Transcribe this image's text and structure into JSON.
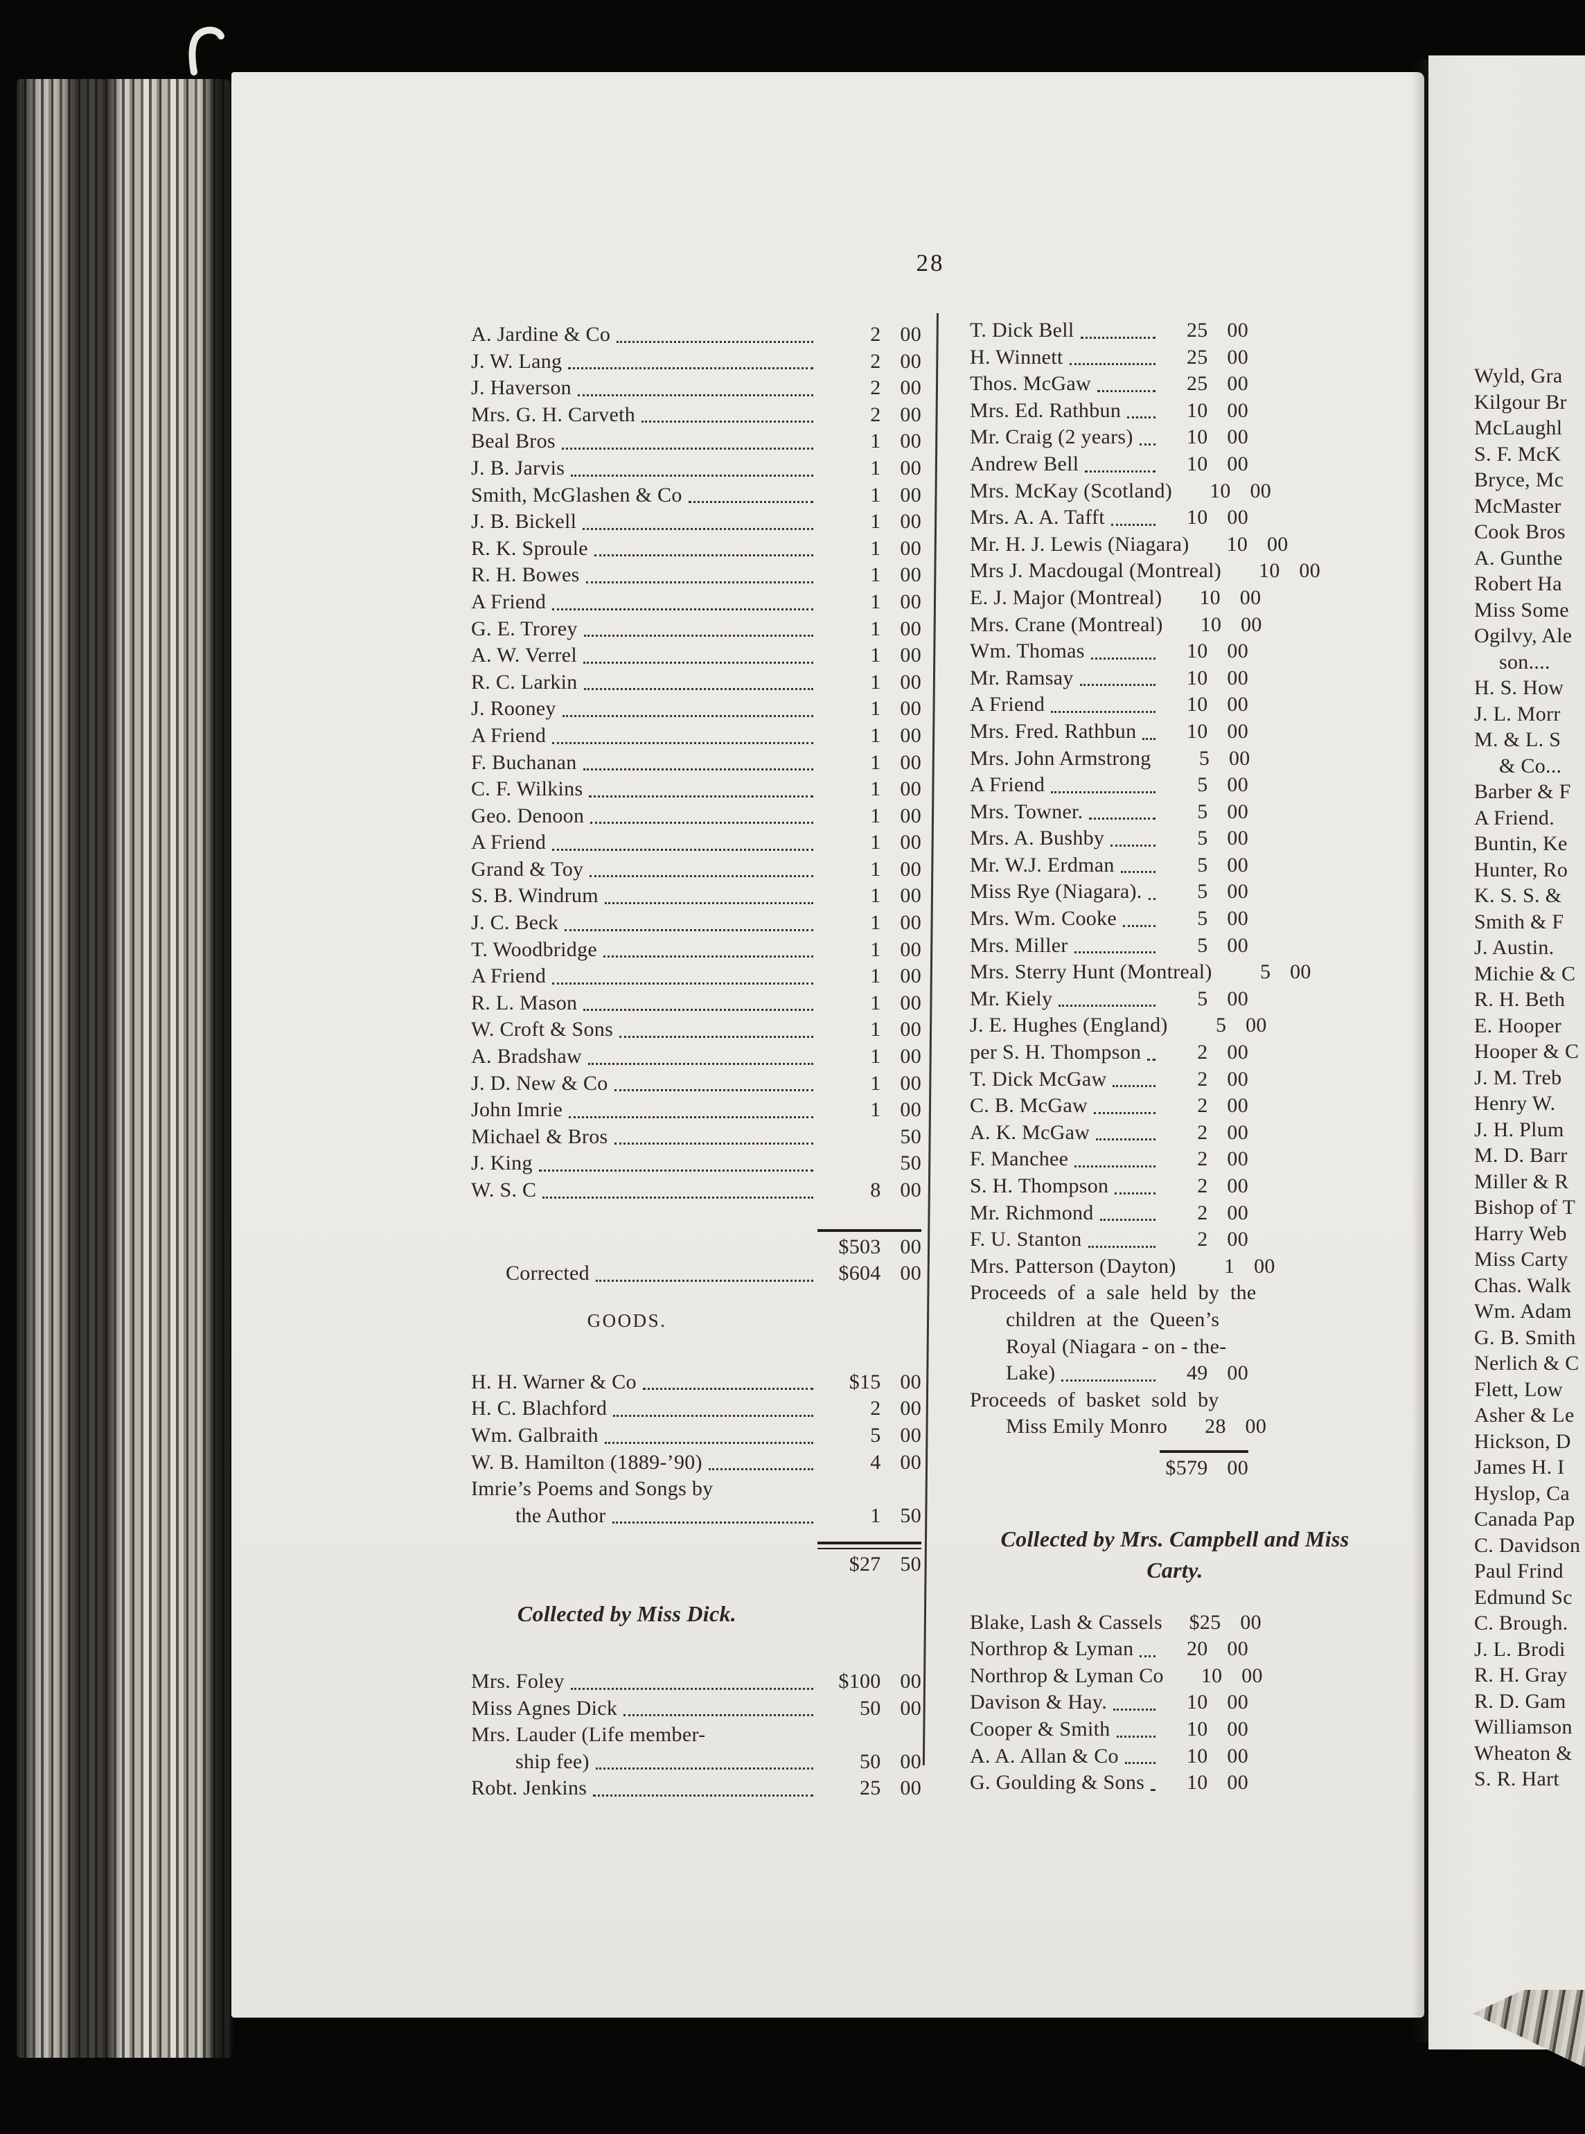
{
  "page_number": "28",
  "left": {
    "entries": [
      {
        "t": "A. Jardine & Co",
        "a": "2 00"
      },
      {
        "t": "J. W. Lang",
        "a": "2 00"
      },
      {
        "t": "J. Haverson",
        "a": "2 00"
      },
      {
        "t": "Mrs. G. H. Carveth",
        "a": "2 00"
      },
      {
        "t": "Beal Bros",
        "a": "1 00"
      },
      {
        "t": "J. B. Jarvis",
        "a": "1 00"
      },
      {
        "t": "Smith, McGlashen & Co",
        "a": "1 00"
      },
      {
        "t": "J. B. Bickell",
        "a": "1 00"
      },
      {
        "t": "R. K. Sproule",
        "a": "1 00"
      },
      {
        "t": "R. H. Bowes",
        "a": "1 00"
      },
      {
        "t": "A Friend",
        "a": "1 00"
      },
      {
        "t": "G. E. Trorey",
        "a": "1 00"
      },
      {
        "t": "A. W. Verrel",
        "a": "1 00"
      },
      {
        "t": "R. C. Larkin",
        "a": "1 00"
      },
      {
        "t": "J. Rooney",
        "a": "1 00"
      },
      {
        "t": "A Friend",
        "a": "1 00"
      },
      {
        "t": "F. Buchanan",
        "a": "1 00"
      },
      {
        "t": "C. F. Wilkins",
        "a": "1 00"
      },
      {
        "t": "Geo. Denoon",
        "a": "1 00"
      },
      {
        "t": "A Friend",
        "a": "1 00"
      },
      {
        "t": "Grand & Toy",
        "a": "1 00"
      },
      {
        "t": "S. B. Windrum",
        "a": "1 00"
      },
      {
        "t": "J. C. Beck",
        "a": "1 00"
      },
      {
        "t": "T. Woodbridge",
        "a": "1 00"
      },
      {
        "t": "A Friend",
        "a": "1 00"
      },
      {
        "t": "R. L. Mason",
        "a": "1 00"
      },
      {
        "t": "W. Croft & Sons",
        "a": "1 00"
      },
      {
        "t": "A. Bradshaw",
        "a": "1 00"
      },
      {
        "t": "J. D. New & Co",
        "a": "1 00"
      },
      {
        "t": "John Imrie",
        "a": "1 00"
      },
      {
        "t": "Michael & Bros",
        "a": "50"
      },
      {
        "t": "J. King",
        "a": "50"
      },
      {
        "t": "W. S. C",
        "a": "8 00"
      }
    ],
    "total": "$503 00",
    "corrected_label": "Corrected",
    "corrected_amount": "$604 00",
    "goods_heading": "GOODS.",
    "goods": [
      {
        "t": "H. H. Warner & Co",
        "a": "$15 00"
      },
      {
        "t": "H. C. Blachford",
        "a": "2 00"
      },
      {
        "t": "Wm. Galbraith",
        "a": "5 00"
      },
      {
        "t": "W. B. Hamilton (1889-’90)",
        "a": "4 00"
      },
      {
        "t": "Imrie’s Poems and Songs by",
        "nd": 1
      },
      {
        "t": "the Author",
        "i": 1,
        "a": "1 50"
      }
    ],
    "goods_total": "$27 50",
    "dick_heading": "Collected by Miss Dick.",
    "dick": [
      {
        "t": "Mrs. Foley",
        "a": "$100 00"
      },
      {
        "t": "Miss Agnes Dick",
        "a": "50 00"
      },
      {
        "t": "Mrs. Lauder (Life member-",
        "nd": 1
      },
      {
        "t": "ship fee)",
        "i": 1,
        "a": "50 00"
      },
      {
        "t": "Robt. Jenkins",
        "a": "25 00"
      }
    ]
  },
  "mid": {
    "entries": [
      {
        "t": "T. Dick Bell",
        "a": "25 00"
      },
      {
        "t": "H. Winnett",
        "a": "25 00"
      },
      {
        "t": "Thos. McGaw",
        "a": "25 00"
      },
      {
        "t": "Mrs. Ed. Rathbun",
        "a": "10 00"
      },
      {
        "t": "Mr. Craig (2 years)",
        "a": "10 00"
      },
      {
        "t": "Andrew Bell",
        "a": "10 00"
      },
      {
        "t": "Mrs. McKay (Scotland)",
        "a": "10 00"
      },
      {
        "t": "Mrs. A. A. Tafft",
        "a": "10 00"
      },
      {
        "t": "Mr. H. J. Lewis (Niagara)",
        "a": "10 00"
      },
      {
        "t": "Mrs J. Macdougal (Montreal)",
        "a": "10 00",
        "nd": 1
      },
      {
        "t": "E. J. Major (Montreal)",
        "a": "10 00"
      },
      {
        "t": "Mrs. Crane (Montreal)",
        "a": "10 00"
      },
      {
        "t": "Wm. Thomas",
        "a": "10 00"
      },
      {
        "t": "Mr. Ramsay",
        "a": "10 00"
      },
      {
        "t": "A Friend",
        "a": "10 00"
      },
      {
        "t": "Mrs. Fred. Rathbun",
        "a": "10 00"
      },
      {
        "t": "Mrs. John Armstrong",
        "a": "5 00"
      },
      {
        "t": "A Friend",
        "a": "5 00"
      },
      {
        "t": "Mrs. Towner.",
        "a": "5 00"
      },
      {
        "t": "Mrs. A. Bushby",
        "a": "5 00"
      },
      {
        "t": "Mr. W.J. Erdman",
        "a": "5 00"
      },
      {
        "t": "Miss Rye (Niagara).",
        "a": "5 00"
      },
      {
        "t": "Mrs. Wm. Cooke",
        "a": "5 00"
      },
      {
        "t": "Mrs. Miller",
        "a": "5 00"
      },
      {
        "t": "Mrs. Sterry Hunt (Montreal)",
        "a": "5 00",
        "nd": 1
      },
      {
        "t": "Mr. Kiely",
        "a": "5 00"
      },
      {
        "t": "J. E. Hughes (England)",
        "a": "5 00"
      },
      {
        "t": "per S. H. Thompson",
        "a": "2 00"
      },
      {
        "t": "T. Dick McGaw",
        "a": "2 00"
      },
      {
        "t": "C. B. McGaw",
        "a": "2 00"
      },
      {
        "t": "A. K. McGaw",
        "a": "2 00"
      },
      {
        "t": "F. Manchee",
        "a": "2 00"
      },
      {
        "t": "S. H. Thompson",
        "a": "2 00"
      },
      {
        "t": "Mr. Richmond",
        "a": "2 00"
      },
      {
        "t": "F. U. Stanton",
        "a": "2 00"
      },
      {
        "t": "Mrs. Patterson (Dayton)",
        "a": "1 00"
      },
      {
        "t": "Proceeds of a sale held by the",
        "nd": 1,
        "w": 1
      },
      {
        "t": "children at the Queen’s",
        "i": 1,
        "nd": 1,
        "w": 1
      },
      {
        "t": "Royal (Niagara - on - the-",
        "i": 1,
        "nd": 1
      },
      {
        "t": "Lake)",
        "i": 1,
        "a": "49 00"
      },
      {
        "t": "Proceeds of basket sold by",
        "nd": 1,
        "w": 1
      },
      {
        "t": "Miss Emily Monro",
        "i": 1,
        "a": "28 00"
      }
    ],
    "total": "$579 00",
    "campbell_heading_1": "Collected by Mrs. Campbell and Miss",
    "campbell_heading_2": "Carty.",
    "campbell": [
      {
        "t": "Blake, Lash & Cassels",
        "a": "$25 00"
      },
      {
        "t": "Northrop & Lyman",
        "a": "20 00"
      },
      {
        "t": "Northrop & Lyman Co",
        "a": "10 00"
      },
      {
        "t": "Davison & Hay.",
        "a": "10 00"
      },
      {
        "t": "Cooper & Smith",
        "a": "10 00"
      },
      {
        "t": "A. A. Allan & Co",
        "a": "10 00"
      },
      {
        "t": "G. Goulding & Sons",
        "a": "10 00"
      }
    ]
  },
  "right": {
    "lines": [
      {
        "t": "Wyld, Gra"
      },
      {
        "t": "Kilgour Br"
      },
      {
        "t": "McLaughl"
      },
      {
        "t": "S. F. McK"
      },
      {
        "t": "Bryce, Mc"
      },
      {
        "t": "McMaster"
      },
      {
        "t": "Cook Bros"
      },
      {
        "t": "A. Gunthe"
      },
      {
        "t": "Robert Ha"
      },
      {
        "t": "Miss Some"
      },
      {
        "t": "Ogilvy, Ale"
      },
      {
        "t": "son....",
        "i": 1
      },
      {
        "t": "H. S. How"
      },
      {
        "t": "J. L. Morr"
      },
      {
        "t": "M. & L. S"
      },
      {
        "t": "& Co...",
        "i": 1
      },
      {
        "t": "Barber & F"
      },
      {
        "t": "A Friend."
      },
      {
        "t": "Buntin, Ke"
      },
      {
        "t": "Hunter, Ro"
      },
      {
        "t": "K. S. S. &"
      },
      {
        "t": "Smith & F"
      },
      {
        "t": "J. Austin."
      },
      {
        "t": "Michie & C"
      },
      {
        "t": "R. H. Beth"
      },
      {
        "t": "E. Hooper"
      },
      {
        "t": "Hooper & C"
      },
      {
        "t": "J. M. Treb"
      },
      {
        "t": "Henry W."
      },
      {
        "t": "J. H. Plum"
      },
      {
        "t": "M. D. Barr"
      },
      {
        "t": "Miller & R"
      },
      {
        "t": "Bishop of T"
      },
      {
        "t": "Harry Web"
      },
      {
        "t": "Miss Carty"
      },
      {
        "t": "Chas. Walk"
      },
      {
        "t": "Wm. Adam"
      },
      {
        "t": "G. B. Smith"
      },
      {
        "t": "Nerlich & C"
      },
      {
        "t": "Flett, Low"
      },
      {
        "t": "Asher & Le"
      },
      {
        "t": "Hickson, D"
      },
      {
        "t": "James H. I"
      },
      {
        "t": "Hyslop, Ca"
      },
      {
        "t": "Canada Pap"
      },
      {
        "t": "C. Davidson"
      },
      {
        "t": "Paul Frind"
      },
      {
        "t": "Edmund Sc"
      },
      {
        "t": "C. Brough."
      },
      {
        "t": "J. L. Brodi"
      },
      {
        "t": "R. H. Gray"
      },
      {
        "t": "R. D. Gam"
      },
      {
        "t": "Williamson"
      },
      {
        "t": "Wheaton &"
      },
      {
        "t": "S. R. Hart"
      }
    ]
  },
  "colors": {
    "paper": "#eceae5",
    "ink": "#2b2622",
    "background": "#070706"
  }
}
